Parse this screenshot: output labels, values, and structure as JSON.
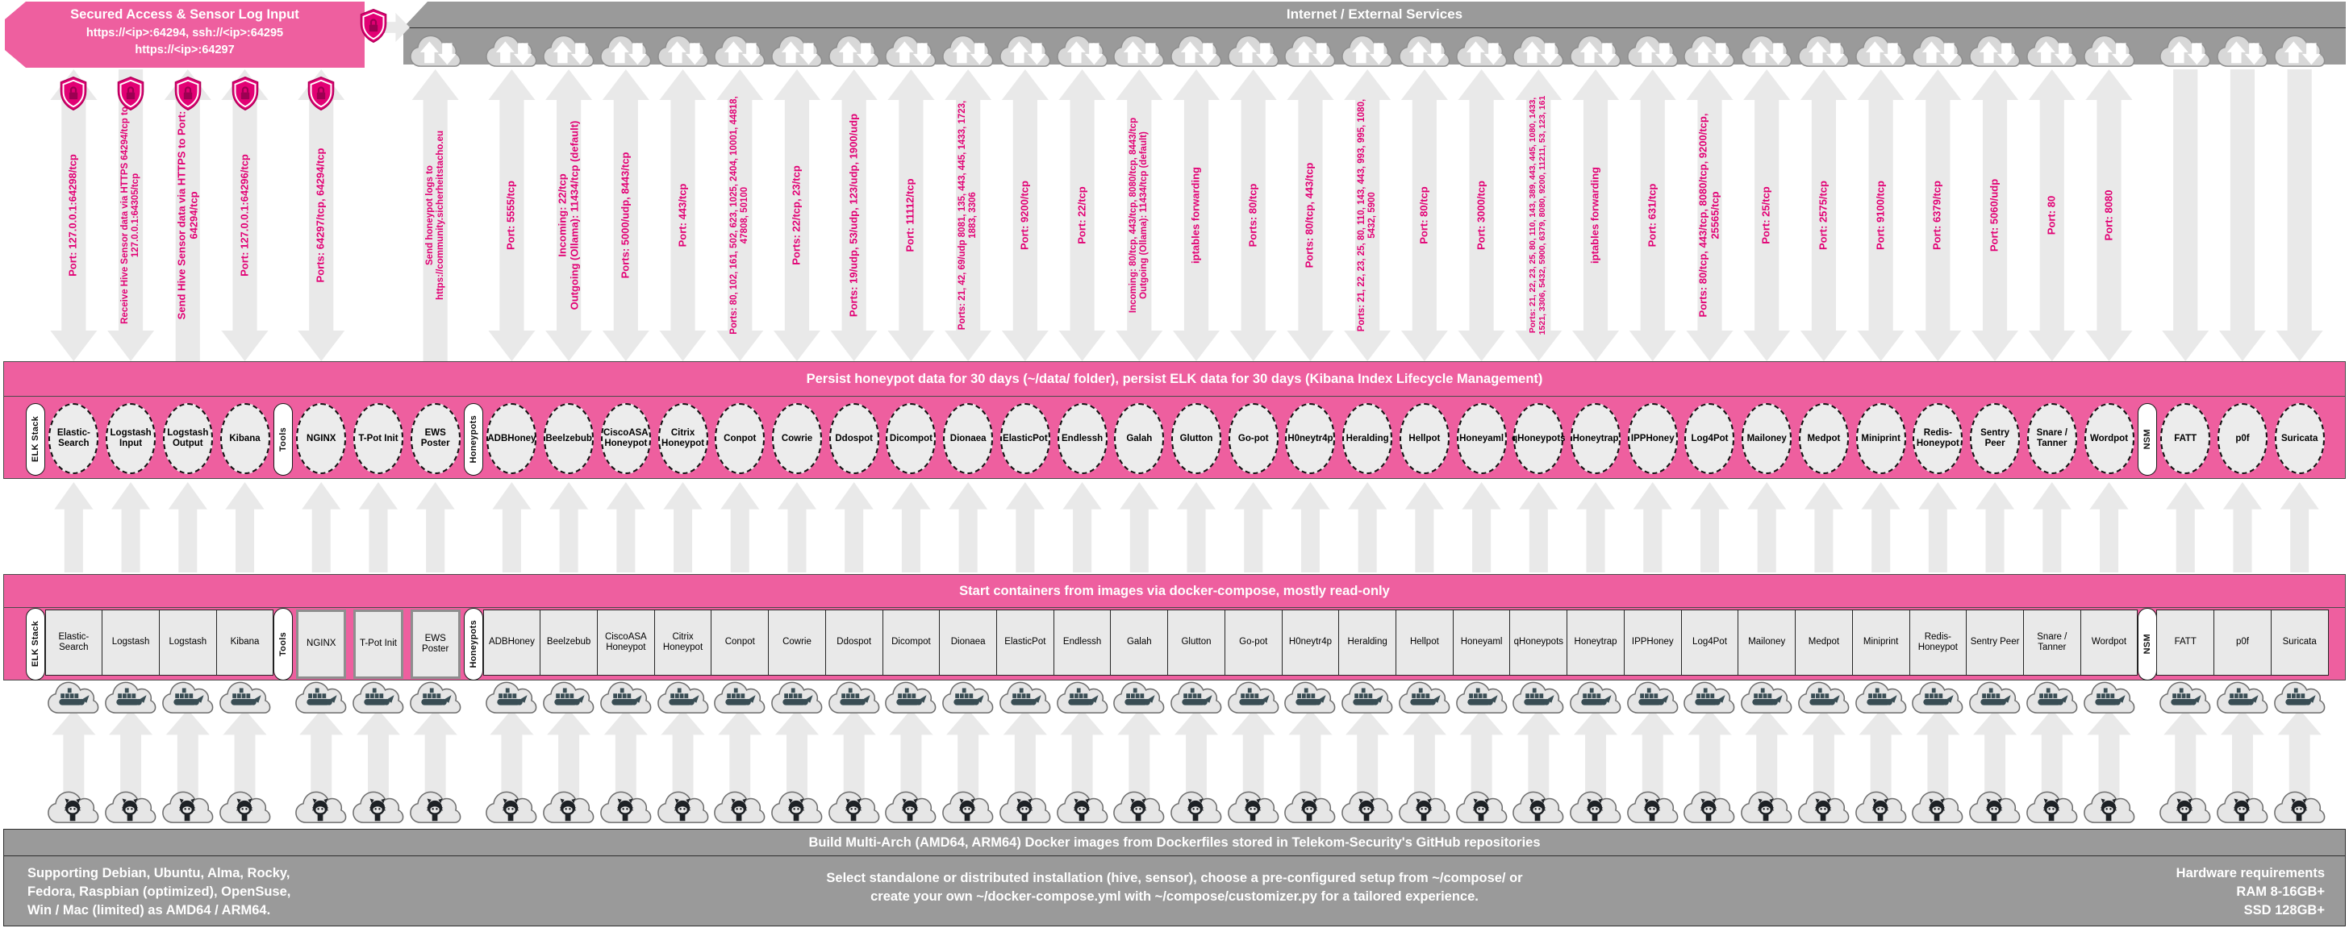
{
  "top": {
    "secured_access": {
      "title": "Secured Access & Sensor Log Input",
      "line1": "https://<ip>:64294, ssh://<ip>:64295",
      "line2": "https://<ip>:64297"
    },
    "internet_banner": "Internet / External Services"
  },
  "bands": {
    "persist": "Persist honeypot data for 30 days (~/data/ folder), persist ELK data for 30 days (Kibana Index Lifecycle Management)",
    "compose": "Start containers from images via docker-compose, mostly read-only",
    "build": "Build Multi-Arch (AMD64, ARM64) Docker images from Dockerfiles stored in Telekom-Security's GitHub repositories"
  },
  "footer": {
    "left": "Supporting Debian, Ubuntu, Alma, Rocky,\nFedora, Raspbian (optimized), OpenSuse,\nWin / Mac (limited) as AMD64 / ARM64.",
    "center": "Select standalone or distributed installation (hive, sensor), choose a pre-configured setup from ~/compose/ or\ncreate your own ~/docker-compose.yml with ~/compose/customizer.py for a tailored experience.",
    "right": "Hardware requirements\nRAM 8-16GB+\nSSD 128GB+"
  },
  "icons": {
    "cloud": "cloud-updown-icon",
    "shield": "shield-lock-icon",
    "docker": "docker-whale-cloud-icon",
    "github": "octocat-cloud-icon"
  },
  "colors": {
    "accent_magenta": "#e20074",
    "band_pink": "#ee5f9f",
    "band_gray": "#9a9a9a"
  },
  "sections": [
    {
      "label": "ELK Stack",
      "items": [
        {
          "name": "Elastic-Search",
          "box": "Elastic-Search",
          "port": "Port: 127.0.0.1:64298/tcp",
          "arrow": "updown",
          "shield": true,
          "cloud": false
        },
        {
          "name": "Logstash Input",
          "box": "Logstash",
          "port": "Receive Hive Sensor data via HTTPS 64294/tcp to 127.0.0.1:64305/tcp",
          "arrow": "down",
          "shield": true,
          "cloud": false
        },
        {
          "name": "Logstash Output",
          "box": "Logstash",
          "port": "Send Hive Sensor data via HTTPS to Port: 64294/tcp",
          "arrow": "up",
          "shield": true,
          "cloud": false
        },
        {
          "name": "Kibana",
          "box": "Kibana",
          "port": "Port: 127.0.0.1:64296/tcp",
          "arrow": "updown",
          "shield": true,
          "cloud": false
        }
      ]
    },
    {
      "label": "Tools",
      "items": [
        {
          "name": "NGINX",
          "box": "NGINX",
          "port": "Ports: 64297/tcp, 64294/tcp",
          "arrow": "updown",
          "shield": true,
          "cloud": false
        },
        {
          "name": "T-Pot Init",
          "box": "T-Pot Init",
          "port": null,
          "arrow": null,
          "shield": false,
          "cloud": false
        },
        {
          "name": "EWS Poster",
          "box": "EWS Poster",
          "port": "Send honeypot logs to https://community.sicherheitstacho.eu",
          "arrow": "up",
          "shield": false,
          "cloud": true
        }
      ]
    },
    {
      "label": "Honeypots",
      "items": [
        {
          "name": "ADBHoney",
          "box": "ADBHoney",
          "port": "Port: 5555/tcp",
          "arrow": "updown",
          "shield": false,
          "cloud": true
        },
        {
          "name": "Beelzebub",
          "box": "Beelzebub",
          "port": "Incoming: 22/tcp\nOutgoing (Ollama): 11434/tcp (default)",
          "arrow": "updown",
          "shield": false,
          "cloud": true
        },
        {
          "name": "CiscoASA Honeypot",
          "box": "CiscoASA Honeypot",
          "port": "Ports: 5000/udp, 8443/tcp",
          "arrow": "updown",
          "shield": false,
          "cloud": true
        },
        {
          "name": "Citrix Honeypot",
          "box": "Citrix Honeypot",
          "port": "Port: 443/tcp",
          "arrow": "updown",
          "shield": false,
          "cloud": true
        },
        {
          "name": "Conpot",
          "box": "Conpot",
          "port": "Ports: 80, 102, 161, 502, 623, 1025, 2404, 10001, 44818, 47808, 50100",
          "arrow": "updown",
          "shield": false,
          "cloud": true
        },
        {
          "name": "Cowrie",
          "box": "Cowrie",
          "port": "Ports: 22/tcp, 23/tcp",
          "arrow": "updown",
          "shield": false,
          "cloud": true
        },
        {
          "name": "Ddospot",
          "box": "Ddospot",
          "port": "Ports: 19/udp, 53/udp, 123/udp, 1900/udp",
          "arrow": "updown",
          "shield": false,
          "cloud": true
        },
        {
          "name": "Dicompot",
          "box": "Dicompot",
          "port": "Port: 11112/tcp",
          "arrow": "updown",
          "shield": false,
          "cloud": true
        },
        {
          "name": "Dionaea",
          "box": "Dionaea",
          "port": "Ports: 21, 42, 69/udp 8081, 135, 443, 445, 1433, 1723, 1883, 3306",
          "arrow": "updown",
          "shield": false,
          "cloud": true
        },
        {
          "name": "ElasticPot",
          "box": "ElasticPot",
          "port": "Port: 9200/tcp",
          "arrow": "updown",
          "shield": false,
          "cloud": true
        },
        {
          "name": "Endlessh",
          "box": "Endlessh",
          "port": "Port: 22/tcp",
          "arrow": "updown",
          "shield": false,
          "cloud": true
        },
        {
          "name": "Galah",
          "box": "Galah",
          "port": "Incoming: 80/tcp, 443/tcp, 8080/tcp, 8443/tcp\nOutgoing (Ollama): 11434/tcp (default)",
          "arrow": "updown",
          "shield": false,
          "cloud": true
        },
        {
          "name": "Glutton",
          "box": "Glutton",
          "port": "iptables forwarding",
          "arrow": "updown",
          "shield": false,
          "cloud": true
        },
        {
          "name": "Go-pot",
          "box": "Go-pot",
          "port": "Ports: 80/tcp",
          "arrow": "updown",
          "shield": false,
          "cloud": true
        },
        {
          "name": "H0neytr4p",
          "box": "H0neytr4p",
          "port": "Ports: 80/tcp, 443/tcp",
          "arrow": "updown",
          "shield": false,
          "cloud": true
        },
        {
          "name": "Heralding",
          "box": "Heralding",
          "port": "Ports: 21, 22, 23, 25, 80, 110, 143, 443, 993, 995, 1080, 5432, 5900",
          "arrow": "updown",
          "shield": false,
          "cloud": true
        },
        {
          "name": "Hellpot",
          "box": "Hellpot",
          "port": "Port: 80/tcp",
          "arrow": "updown",
          "shield": false,
          "cloud": true
        },
        {
          "name": "Honeyaml",
          "box": "Honeyaml",
          "port": "Port: 3000/tcp",
          "arrow": "updown",
          "shield": false,
          "cloud": true
        },
        {
          "name": "qHoneypots",
          "box": "qHoneypots",
          "port": "Ports: 21, 22, 23, 25, 80, 110, 143, 389, 443, 445, 1080, 1433, 1521, 3306, 5432, 5900, 6379, 8080, 9200, 11211, 53, 123, 161",
          "arrow": "updown",
          "shield": false,
          "cloud": true
        },
        {
          "name": "Honeytrap",
          "box": "Honeytrap",
          "port": "iptables forwarding",
          "arrow": "updown",
          "shield": false,
          "cloud": true
        },
        {
          "name": "IPPHoney",
          "box": "IPPHoney",
          "port": "Port: 631/tcp",
          "arrow": "updown",
          "shield": false,
          "cloud": true
        },
        {
          "name": "Log4Pot",
          "box": "Log4Pot",
          "port": "Ports: 80/tcp, 443/tcp, 8080/tcp, 9200/tcp, 25565/tcp",
          "arrow": "updown",
          "shield": false,
          "cloud": true
        },
        {
          "name": "Mailoney",
          "box": "Mailoney",
          "port": "Port: 25/tcp",
          "arrow": "updown",
          "shield": false,
          "cloud": true
        },
        {
          "name": "Medpot",
          "box": "Medpot",
          "port": "Port: 2575/tcp",
          "arrow": "updown",
          "shield": false,
          "cloud": true
        },
        {
          "name": "Miniprint",
          "box": "Miniprint",
          "port": "Port: 9100/tcp",
          "arrow": "updown",
          "shield": false,
          "cloud": true
        },
        {
          "name": "Redis-Honeypot",
          "box": "Redis-Honeypot",
          "port": "Port: 6379/tcp",
          "arrow": "updown",
          "shield": false,
          "cloud": true
        },
        {
          "name": "Sentry Peer",
          "box": "Sentry Peer",
          "port": "Port: 5060/udp",
          "arrow": "updown",
          "shield": false,
          "cloud": true
        },
        {
          "name": "Snare / Tanner",
          "box": "Snare / Tanner",
          "port": "Port: 80",
          "arrow": "updown",
          "shield": false,
          "cloud": true
        },
        {
          "name": "Wordpot",
          "box": "Wordpot",
          "port": "Port: 8080",
          "arrow": "updown",
          "shield": false,
          "cloud": true
        }
      ]
    },
    {
      "label": "NSM",
      "items": [
        {
          "name": "FATT",
          "box": "FATT",
          "port": null,
          "arrow": "down",
          "shield": false,
          "cloud": true
        },
        {
          "name": "p0f",
          "box": "p0f",
          "port": null,
          "arrow": "down",
          "shield": false,
          "cloud": true
        },
        {
          "name": "Suricata",
          "box": "Suricata",
          "port": null,
          "arrow": "down",
          "shield": false,
          "cloud": true
        }
      ]
    }
  ]
}
